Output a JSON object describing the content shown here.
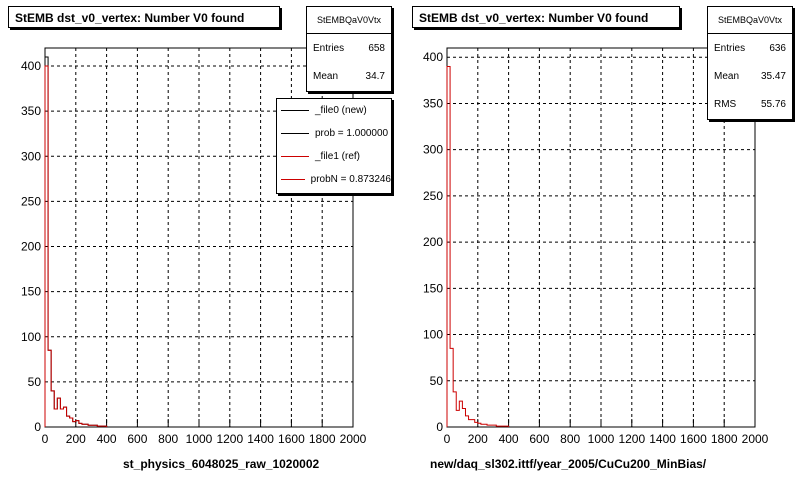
{
  "chart_data": [
    {
      "type": "bar",
      "title": "StEMB dst_v0_vertex: Number V0 found",
      "xlabel": "st_physics_6048025_raw_1020002",
      "ylabel": "",
      "xlim": [
        0,
        2000
      ],
      "ylim": [
        0,
        420
      ],
      "xticks": [
        "0",
        "200",
        "400",
        "600",
        "800",
        "1000",
        "1200",
        "1400",
        "1600",
        "1800",
        "2000"
      ],
      "yticks": [
        "0",
        "50",
        "100",
        "150",
        "200",
        "250",
        "300",
        "350",
        "400"
      ],
      "grid": true,
      "bin_width": 20,
      "series": [
        {
          "color": "#000000",
          "values": [
            410,
            85,
            40,
            20,
            32,
            20,
            22,
            12,
            10,
            6,
            7,
            4,
            3,
            3,
            2,
            2,
            2,
            1,
            1,
            1
          ]
        },
        {
          "color": "#cc0000",
          "values": [
            400,
            85,
            40,
            20,
            32,
            20,
            22,
            12,
            10,
            6,
            7,
            4,
            3,
            3,
            2,
            2,
            2,
            1,
            1,
            1
          ]
        }
      ],
      "stats": {
        "name": "StEMBQaV0Vtx",
        "rows": [
          {
            "label": "Entries",
            "value": "658"
          },
          {
            "label": "Mean",
            "value": "34.7"
          }
        ]
      },
      "legend": [
        {
          "label": "_file0 (new)",
          "color": "#000000"
        },
        {
          "label": "prob = 1.000000",
          "color": "#000000"
        },
        {
          "label": "_file1 (ref)",
          "color": "#cc0000"
        },
        {
          "label": "probN = 0.873246",
          "color": "#cc0000"
        }
      ]
    },
    {
      "type": "bar",
      "title": "StEMB dst_v0_vertex: Number V0 found",
      "xlabel": "new/daq_sl302.ittf/year_2005/CuCu200_MinBias/",
      "ylabel": "",
      "xlim": [
        0,
        2000
      ],
      "ylim": [
        0,
        410
      ],
      "xticks": [
        "0",
        "200",
        "400",
        "600",
        "800",
        "1000",
        "1200",
        "1400",
        "1600",
        "1800",
        "2000"
      ],
      "yticks": [
        "0",
        "50",
        "100",
        "150",
        "200",
        "250",
        "300",
        "350",
        "400"
      ],
      "grid": true,
      "bin_width": 20,
      "series": [
        {
          "color": "#cc0000",
          "values": [
            390,
            85,
            38,
            18,
            28,
            20,
            12,
            8,
            8,
            5,
            4,
            3,
            3,
            2,
            2,
            2,
            1,
            1,
            1,
            1
          ]
        }
      ],
      "stats": {
        "name": "StEMBQaV0Vtx",
        "rows": [
          {
            "label": "Entries",
            "value": "636"
          },
          {
            "label": "Mean",
            "value": "35.47"
          },
          {
            "label": "RMS",
            "value": "55.76"
          }
        ]
      }
    }
  ]
}
